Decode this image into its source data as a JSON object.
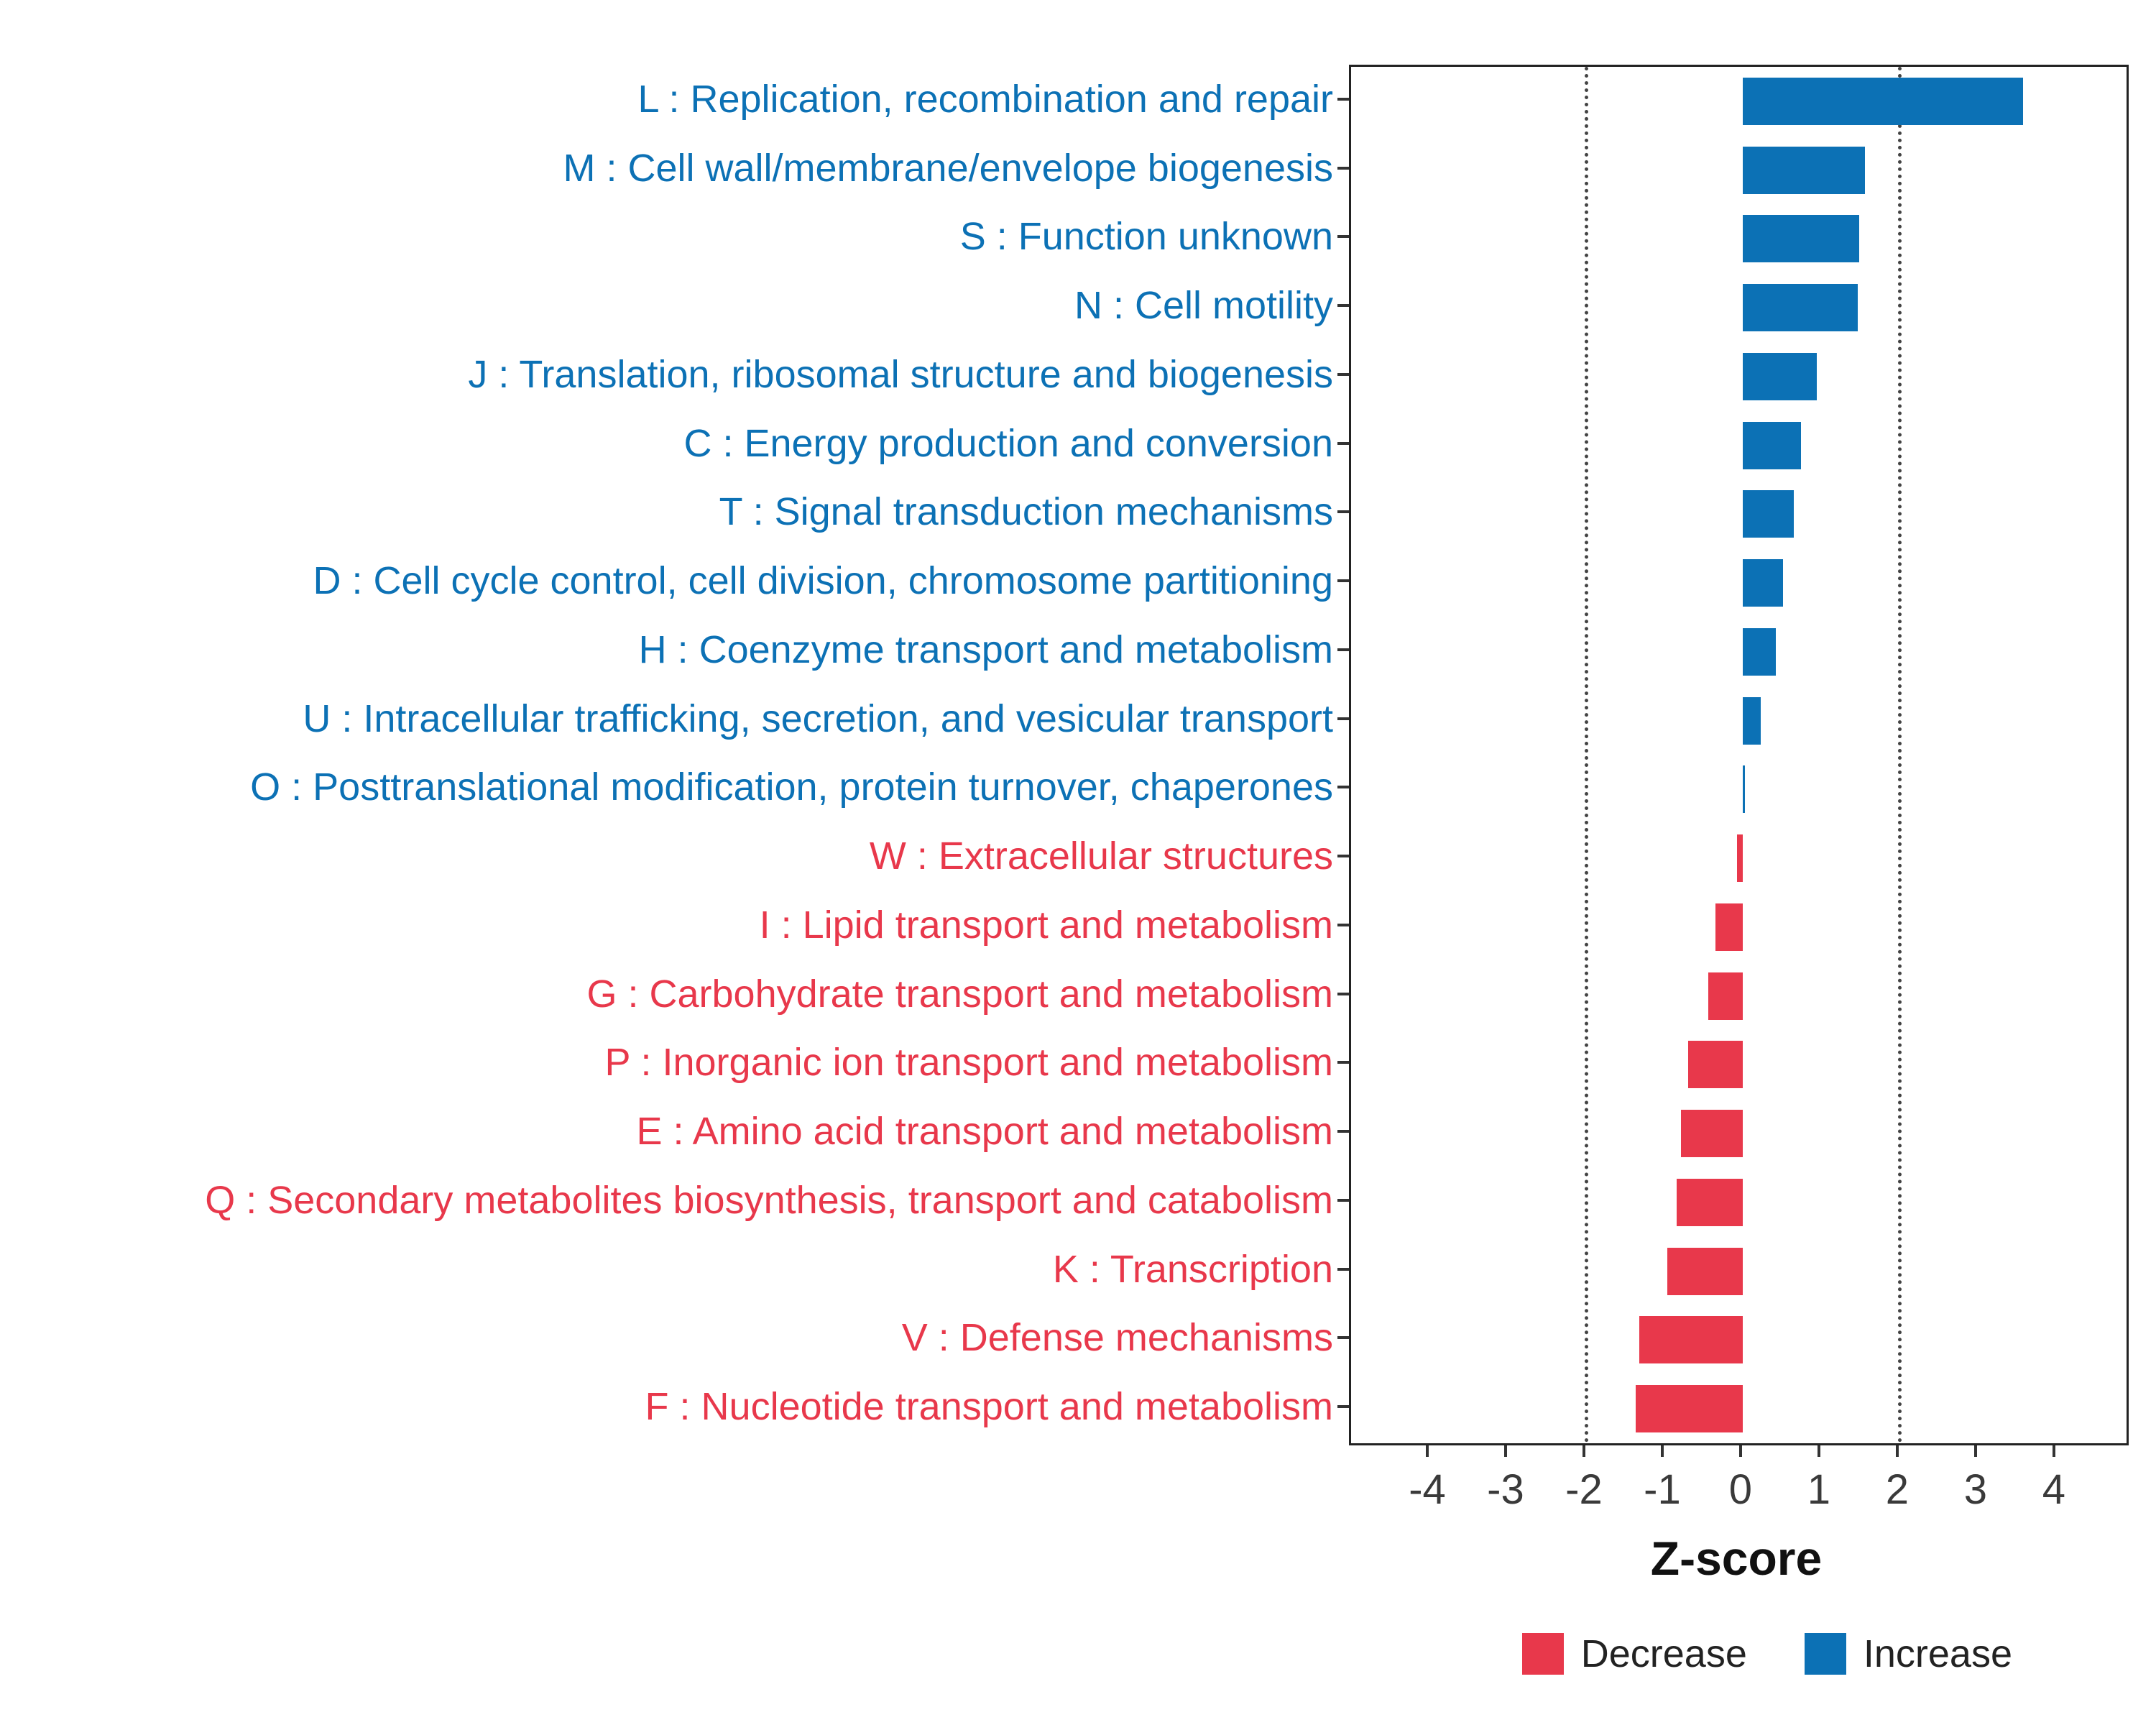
{
  "chart_data": {
    "type": "bar",
    "orientation": "horizontal",
    "title": "",
    "xlabel": "Z-score",
    "ylabel": "",
    "xlim": [
      -5.0,
      4.9
    ],
    "xticks": [
      -4,
      -3,
      -2,
      -1,
      0,
      1,
      2,
      3,
      4
    ],
    "reference_lines": [
      -2,
      2
    ],
    "grid": "off",
    "legend_position": "bottom-right",
    "colors": {
      "increase": "#0C71B5",
      "decrease": "#E8384B"
    },
    "legend": [
      {
        "label": "Decrease",
        "color": "#E8384B"
      },
      {
        "label": "Increase",
        "color": "#0C71B5"
      }
    ],
    "rows": [
      {
        "label": "L : Replication, recombination and repair",
        "value": 3.58,
        "direction": "increase"
      },
      {
        "label": "M : Cell wall/membrane/envelope biogenesis",
        "value": 1.56,
        "direction": "increase"
      },
      {
        "label": "S : Function unknown",
        "value": 1.49,
        "direction": "increase"
      },
      {
        "label": "N : Cell motility",
        "value": 1.47,
        "direction": "increase"
      },
      {
        "label": "J : Translation, ribosomal structure and biogenesis",
        "value": 0.95,
        "direction": "increase"
      },
      {
        "label": "C : Energy production and conversion",
        "value": 0.74,
        "direction": "increase"
      },
      {
        "label": "T : Signal transduction mechanisms",
        "value": 0.65,
        "direction": "increase"
      },
      {
        "label": "D : Cell cycle control, cell division, chromosome partitioning",
        "value": 0.51,
        "direction": "increase"
      },
      {
        "label": "H : Coenzyme transport and metabolism",
        "value": 0.42,
        "direction": "increase"
      },
      {
        "label": "U : Intracellular trafficking, secretion, and vesicular transport",
        "value": 0.23,
        "direction": "increase"
      },
      {
        "label": "O : Posttranslational modification, protein turnover, chaperones",
        "value": 0.03,
        "direction": "increase"
      },
      {
        "label": "W : Extracellular structures",
        "value": -0.07,
        "direction": "decrease"
      },
      {
        "label": "I : Lipid transport and metabolism",
        "value": -0.35,
        "direction": "decrease"
      },
      {
        "label": "G : Carbohydrate transport and metabolism",
        "value": -0.44,
        "direction": "decrease"
      },
      {
        "label": "P : Inorganic ion transport and metabolism",
        "value": -0.7,
        "direction": "decrease"
      },
      {
        "label": "E : Amino acid transport and metabolism",
        "value": -0.79,
        "direction": "decrease"
      },
      {
        "label": "Q : Secondary metabolites biosynthesis, transport and catabolism",
        "value": -0.84,
        "direction": "decrease"
      },
      {
        "label": "K : Transcription",
        "value": -0.96,
        "direction": "decrease"
      },
      {
        "label": "V : Defense mechanisms",
        "value": -1.32,
        "direction": "decrease"
      },
      {
        "label": "F : Nucleotide transport and metabolism",
        "value": -1.37,
        "direction": "decrease"
      }
    ]
  }
}
